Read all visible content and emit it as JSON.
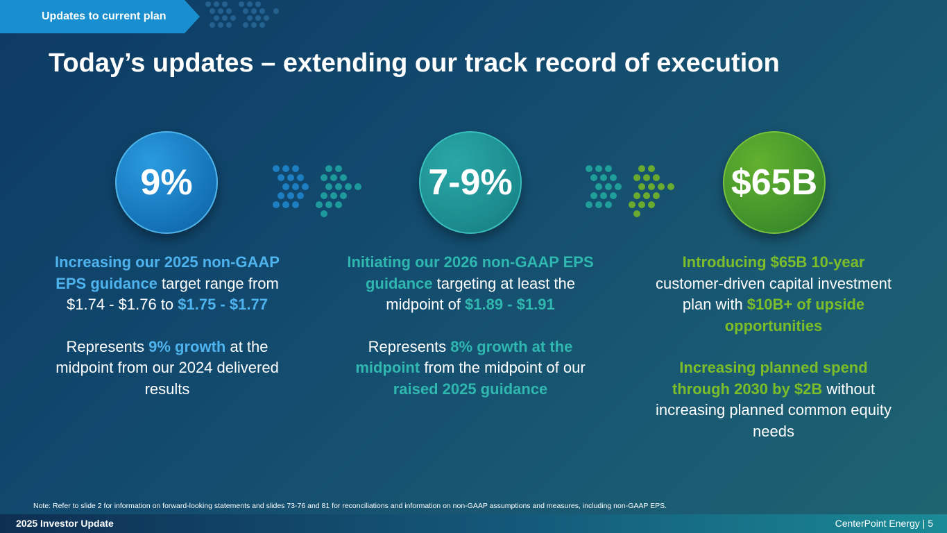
{
  "header": {
    "tab_label": "Updates to current plan",
    "title": "Today’s updates – extending our track record of execution"
  },
  "columns": [
    {
      "stat": "9%",
      "p1": [
        {
          "t": "Increasing our 2025 non-GAAP EPS guidance",
          "hl": true
        },
        {
          "t": " target range from $1.74 - $1.76 to ",
          "hl": false
        },
        {
          "t": "$1.75 - $1.77",
          "hl": true
        }
      ],
      "p2": [
        {
          "t": "Represents ",
          "hl": false
        },
        {
          "t": "9% growth",
          "hl": true
        },
        {
          "t": " at the midpoint from our 2024 delivered results",
          "hl": false
        }
      ]
    },
    {
      "stat": "7-9%",
      "p1": [
        {
          "t": "Initiating our 2026 non-GAAP EPS guidance",
          "hl": true
        },
        {
          "t": " targeting at least the midpoint of ",
          "hl": false
        },
        {
          "t": "$1.89 - $1.91",
          "hl": true
        }
      ],
      "p2": [
        {
          "t": "Represents ",
          "hl": false
        },
        {
          "t": "8% growth at the midpoint",
          "hl": true
        },
        {
          "t": " from the midpoint of our ",
          "hl": false
        },
        {
          "t": "raised 2025 guidance",
          "hl": true
        }
      ]
    },
    {
      "stat": "$65B",
      "p1": [
        {
          "t": "Introducing $65B 10-year",
          "hl": true
        },
        {
          "t": " customer-driven capital investment plan with ",
          "hl": false
        },
        {
          "t": "$10B+ of upside opportunities",
          "hl": true
        }
      ],
      "p2": [
        {
          "t": "Increasing planned spend through 2030 by $2B",
          "hl": true
        },
        {
          "t": " without increasing planned common equity needs",
          "hl": false
        }
      ]
    }
  ],
  "note": "Note: Refer to slide 2 for information on forward-looking statements and slides 73-76 and 81 for reconciliations and information on non-GAAP assumptions and measures, including non-GAAP EPS.",
  "footer": {
    "left": "2025 Investor Update",
    "right": "CenterPoint Energy | 5"
  },
  "colors": {
    "blue": "#4fb3ee",
    "teal": "#2fb7b0",
    "green": "#7cbd2a",
    "tab": "#1a8fd0"
  }
}
